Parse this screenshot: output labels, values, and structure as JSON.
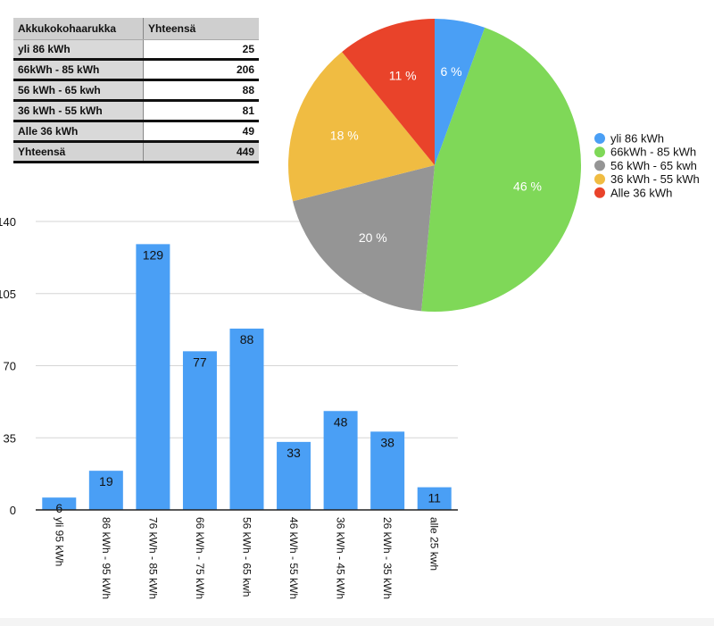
{
  "table": {
    "headers": [
      "Akkukokohaarukka",
      "Yhteensä"
    ],
    "rows": [
      [
        "yli 86 kWh",
        "25"
      ],
      [
        "66kWh - 85 kWh",
        "206"
      ],
      [
        "56 kWh - 65 kwh",
        "88"
      ],
      [
        "36 kWh - 55 kWh",
        "81"
      ],
      [
        "Alle 36 kWh",
        "49"
      ]
    ],
    "total": [
      "Yhteensä",
      "449"
    ]
  },
  "chart_data": [
    {
      "type": "bar",
      "categories": [
        "yli 95 kWh",
        "86 kWh - 95 kWh",
        "76 kWh - 85 kWh",
        "66 kWh - 75 kWh",
        "56 kWh - 65 kwh",
        "46 kWh - 55 kWh",
        "36 kWh - 45 kWh",
        "26 kWh - 35 kWh",
        "alle 25 kwh"
      ],
      "values": [
        6,
        19,
        129,
        77,
        88,
        33,
        48,
        38,
        11
      ],
      "ylim": [
        0,
        140
      ],
      "yticks": [
        "0",
        "35",
        "70",
        "105",
        "140"
      ],
      "grid": true,
      "color": "#4a9ff5"
    },
    {
      "type": "pie",
      "labels": [
        "yli 86 kWh",
        "66kWh - 85 kWh",
        "56 kWh - 65 kwh",
        "36 kWh - 55 kWh",
        "Alle 36 kWh"
      ],
      "values": [
        25,
        206,
        88,
        81,
        49
      ],
      "percent_labels": [
        "6 %",
        "46 %",
        "20 %",
        "18 %",
        "11 %"
      ],
      "colors": [
        "#4a9ff5",
        "#7fd858",
        "#959595",
        "#f0bc42",
        "#e9432a"
      ],
      "legend": "right"
    }
  ]
}
